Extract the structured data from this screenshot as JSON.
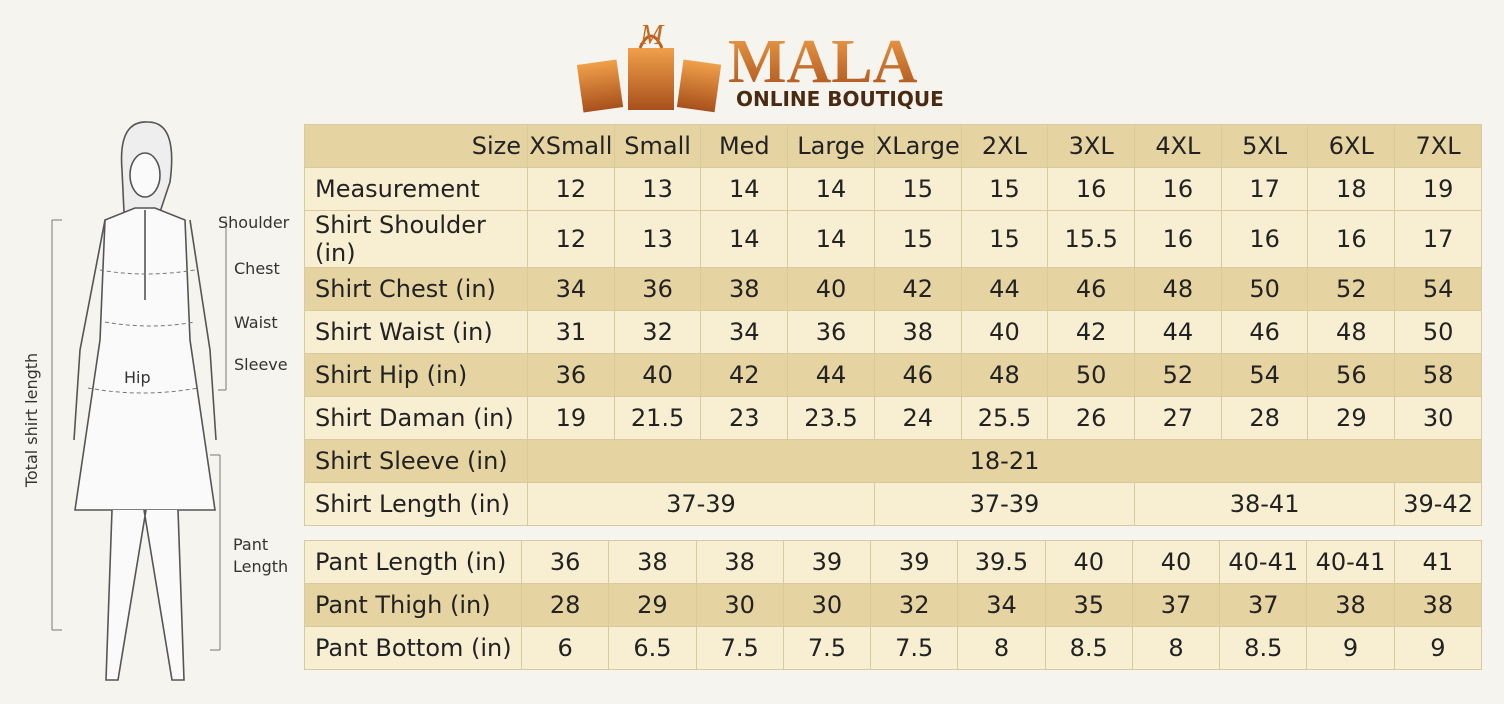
{
  "brand": {
    "name": "MALA",
    "tagline": "ONLINE BOUTIQUE"
  },
  "figure": {
    "labels": {
      "shoulder": "Shoulder",
      "chest": "Chest",
      "waist": "Waist",
      "sleeve": "Sleeve",
      "hip": "Hip",
      "total_length": "Total shirt length",
      "pant_length": [
        "Pant",
        "Length"
      ]
    }
  },
  "table": {
    "header": [
      "Size",
      "XSmall",
      "Small",
      "Med",
      "Large",
      "XLarge",
      "2XL",
      "3XL",
      "4XL",
      "5XL",
      "6XL",
      "7XL"
    ],
    "rows": [
      {
        "label": "Measurement",
        "cells": [
          12,
          13,
          14,
          14,
          15,
          15,
          16,
          16,
          17,
          18,
          19
        ]
      },
      {
        "label": "Shirt Shoulder (in)",
        "cells": [
          12,
          13,
          14,
          14,
          15,
          15,
          15.5,
          16,
          16,
          16,
          17
        ]
      },
      {
        "label": "Shirt Chest (in)",
        "cells": [
          34,
          36,
          38,
          40,
          42,
          44,
          46,
          48,
          50,
          52,
          54
        ]
      },
      {
        "label": "Shirt Waist (in)",
        "cells": [
          31,
          32,
          34,
          36,
          38,
          40,
          42,
          44,
          46,
          48,
          50
        ]
      },
      {
        "label": "Shirt Hip (in)",
        "cells": [
          36,
          40,
          42,
          44,
          46,
          48,
          50,
          52,
          54,
          56,
          58
        ]
      },
      {
        "label": "Shirt Daman (in)",
        "cells": [
          19,
          21.5,
          23,
          23.5,
          24,
          25.5,
          26,
          27,
          28,
          29,
          30
        ]
      },
      {
        "label": "Shirt Sleeve (in)",
        "cells": [
          "18-21"
        ]
      },
      {
        "label": "Shirt Length (in)",
        "cells": [
          "37-39",
          "37-39",
          "38-41",
          "39-42"
        ]
      }
    ],
    "pant_rows": [
      {
        "label": "Pant Length (in)",
        "cells": [
          36,
          38,
          38,
          39,
          39,
          39.5,
          40,
          40,
          "40-41",
          "40-41",
          41
        ]
      },
      {
        "label": "Pant Thigh (in)",
        "cells": [
          28,
          29,
          30,
          30,
          32,
          34,
          35,
          37,
          37,
          38,
          38
        ]
      },
      {
        "label": "Pant Bottom (in)",
        "cells": [
          6,
          6.5,
          7.5,
          7.5,
          7.5,
          8,
          8.5,
          8,
          8.5,
          9,
          9
        ]
      }
    ]
  }
}
